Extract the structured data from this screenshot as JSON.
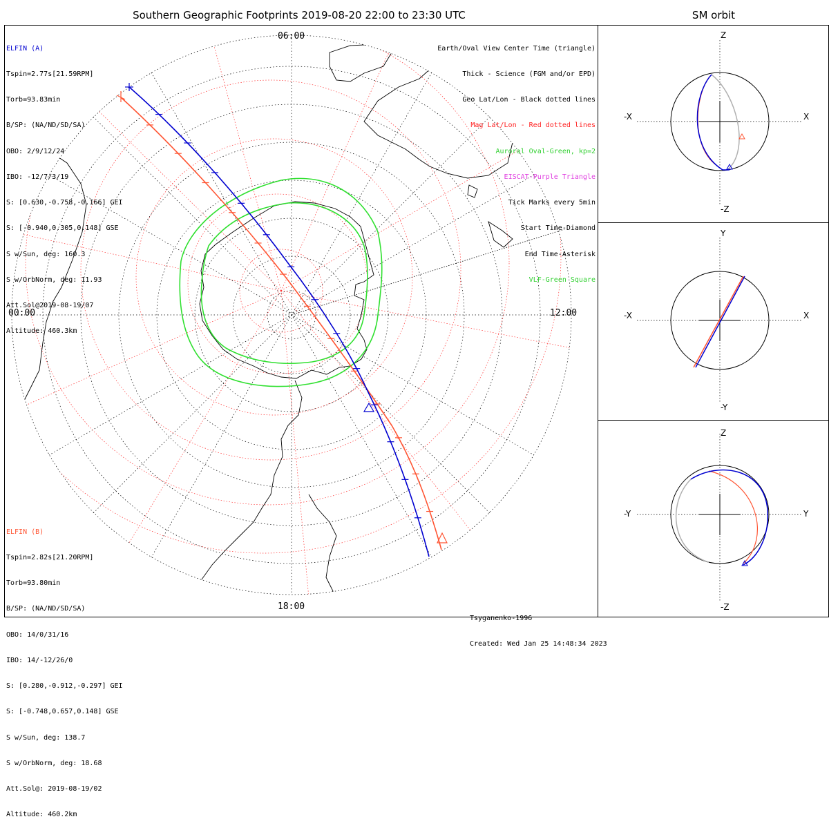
{
  "title": "Southern Geographic Footprints 2019-08-20 22:00 to 23:30 UTC",
  "side_title": "SM orbit",
  "colors": {
    "elfin_a": "#0000d0",
    "elfin_b": "#ff5533",
    "geo": "#000000",
    "mag": "#ff3030",
    "auroral": "#30e030",
    "eiscat": "#e040e0",
    "vlf": "#30e030",
    "orbit_grey": "#b0b0b0"
  },
  "hours": {
    "top": "06:00",
    "left": "00:00",
    "right": "12:00",
    "bottom": "18:00"
  },
  "elfin_a": {
    "name": "ELFIN (A)",
    "lines": [
      "Tspin=2.77s[21.59RPM]",
      "Torb=93.83min",
      "B/SP: (NA/ND/SD/SA)",
      "OBO: 2/9/12/24",
      "IBO: -12/7/3/19",
      "S: [0.630,-0.758,-0.166] GEI",
      "S: [-0.940,0.305,0.148] GSE",
      "S w/Sun, deg: 160.3",
      "S w/OrbNorm, deg: 11.93",
      "Att.Sol@2019-08-19/07",
      "Altitude: 460.3km"
    ]
  },
  "elfin_b": {
    "name": "ELFIN (B)",
    "lines": [
      "Tspin=2.82s[21.20RPM]",
      "Torb=93.80min",
      "B/SP: (NA/ND/SD/SA)",
      "OBO: 14/0/31/16",
      "IBO: 14/-12/26/0",
      "S: [0.280,-0.912,-0.297] GEI",
      "S: [-0.748,0.657,0.148] GSE",
      "S w/Sun, deg: 138.7",
      "S w/OrbNorm, deg: 18.68",
      "Att.Sol@: 2019-08-19/02",
      "Altitude: 460.2km"
    ]
  },
  "legend": [
    {
      "text": "Earth/Oval View Center Time (triangle)",
      "color": "#000000"
    },
    {
      "text": "Thick - Science (FGM and/or EPD)",
      "color": "#000000"
    },
    {
      "text": "Geo Lat/Lon - Black dotted lines",
      "color": "#000000"
    },
    {
      "text": "Mag Lat/Lon - Red dotted lines",
      "color": "#ff2020"
    },
    {
      "text": "Auroral Oval-Green, kp=2",
      "color": "#30d030"
    },
    {
      "text": "EISCAT-Purple Triangle",
      "color": "#e040e0"
    },
    {
      "text": "Tick Marks every 5min",
      "color": "#000000"
    },
    {
      "text": "Start Time-Diamond",
      "color": "#000000"
    },
    {
      "text": "End Time-Asterisk",
      "color": "#000000"
    },
    {
      "text": "VLF-Green Square",
      "color": "#30d030"
    }
  ],
  "credit": {
    "model": "Tsyganenko-1996",
    "created": "Created: Wed Jan 25 14:48:34 2023"
  },
  "panels": [
    {
      "name": "xz",
      "top": "Z",
      "bottom": "-Z",
      "left": "-X",
      "right": "X"
    },
    {
      "name": "xy",
      "top": "Y",
      "bottom": "-Y",
      "left": "-X",
      "right": "X"
    },
    {
      "name": "yz",
      "top": "Z",
      "bottom": "-Z",
      "left": "-Y",
      "right": "Y"
    }
  ]
}
